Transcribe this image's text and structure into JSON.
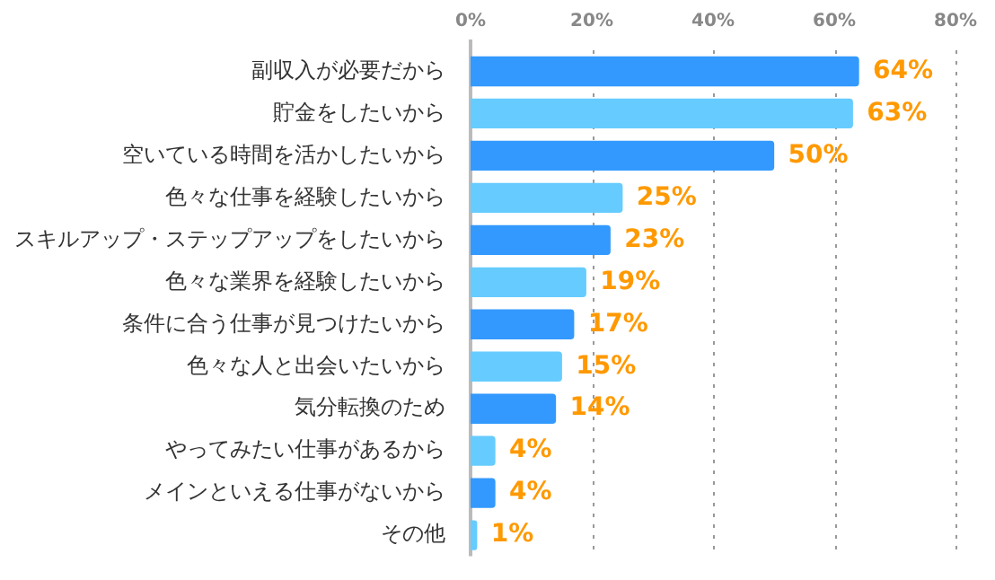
{
  "chart_data": {
    "type": "bar",
    "orientation": "horizontal",
    "categories": [
      "副収入が必要だから",
      "貯金をしたいから",
      "空いている時間を活かしたいから",
      "色々な仕事を経験したいから",
      "スキルアップ・ステップアップをしたいから",
      "色々な業界を経験したいから",
      "条件に合う仕事が見つけたいから",
      "色々な人と出会いたいから",
      "気分転換のため",
      "やってみたい仕事があるから",
      "メインといえる仕事がないから",
      "その他"
    ],
    "values": [
      64,
      63,
      50,
      25,
      23,
      19,
      17,
      15,
      14,
      4,
      4,
      1
    ],
    "colors": [
      "#3399ff",
      "#66ccff",
      "#3399ff",
      "#66ccff",
      "#3399ff",
      "#66ccff",
      "#3399ff",
      "#66ccff",
      "#3399ff",
      "#66ccff",
      "#3399ff",
      "#66ccff"
    ],
    "value_labels": [
      "64%",
      "63%",
      "50%",
      "25%",
      "23%",
      "19%",
      "17%",
      "15%",
      "14%",
      "4%",
      "4%",
      "1%"
    ],
    "xlim": [
      0,
      80
    ],
    "xticks": [
      {
        "value": 0,
        "label": "0%"
      },
      {
        "value": 20,
        "label": "20%"
      },
      {
        "value": 40,
        "label": "40%"
      },
      {
        "value": 60,
        "label": "60%"
      },
      {
        "value": 80,
        "label": "80%"
      }
    ],
    "grid": "x",
    "legend": false
  }
}
